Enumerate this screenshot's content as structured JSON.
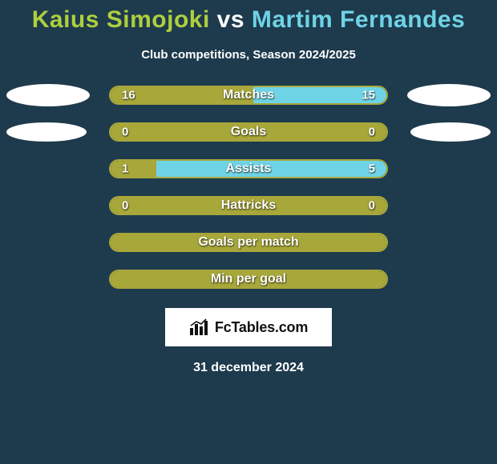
{
  "background_color": "#1e3a4d",
  "title": {
    "player_a_color": "#aecf3e",
    "vs_color": "#ffffff",
    "player_b_color": "#6fd3e6",
    "fontsize": 30
  },
  "subtitle": {
    "text": "Club competitions, Season 2024/2025",
    "color": "#ffffff",
    "fontsize": 15
  },
  "players": {
    "a": "Kaius Simojoki",
    "b": "Martim Fernandes"
  },
  "colors": {
    "a": "#a7a73a",
    "b": "#6fd3e6",
    "track_border": "#a7a73a"
  },
  "bar": {
    "track_width": 348,
    "track_height": 24,
    "border_width": 2,
    "border_radius": 12,
    "label_fontsize": 16,
    "value_fontsize": 15
  },
  "ellipse": {
    "matches": {
      "width": 104,
      "height": 28
    },
    "goals": {
      "width": 100,
      "height": 24
    }
  },
  "stats": [
    {
      "label": "Matches",
      "a": 16,
      "b": 15,
      "a_text": "16",
      "b_text": "15",
      "show_ellipses": "matches"
    },
    {
      "label": "Goals",
      "a": 0,
      "b": 0,
      "a_text": "0",
      "b_text": "0",
      "show_ellipses": "goals"
    },
    {
      "label": "Assists",
      "a": 1,
      "b": 5,
      "a_text": "1",
      "b_text": "5"
    },
    {
      "label": "Hattricks",
      "a": 0,
      "b": 0,
      "a_text": "0",
      "b_text": "0"
    },
    {
      "label": "Goals per match",
      "a": 0,
      "b": 0
    },
    {
      "label": "Min per goal",
      "a": 0,
      "b": 0
    }
  ],
  "footer": {
    "brand": "FcTables.com",
    "date": "31 december 2024",
    "date_color": "#ffffff",
    "date_fontsize": 16
  }
}
